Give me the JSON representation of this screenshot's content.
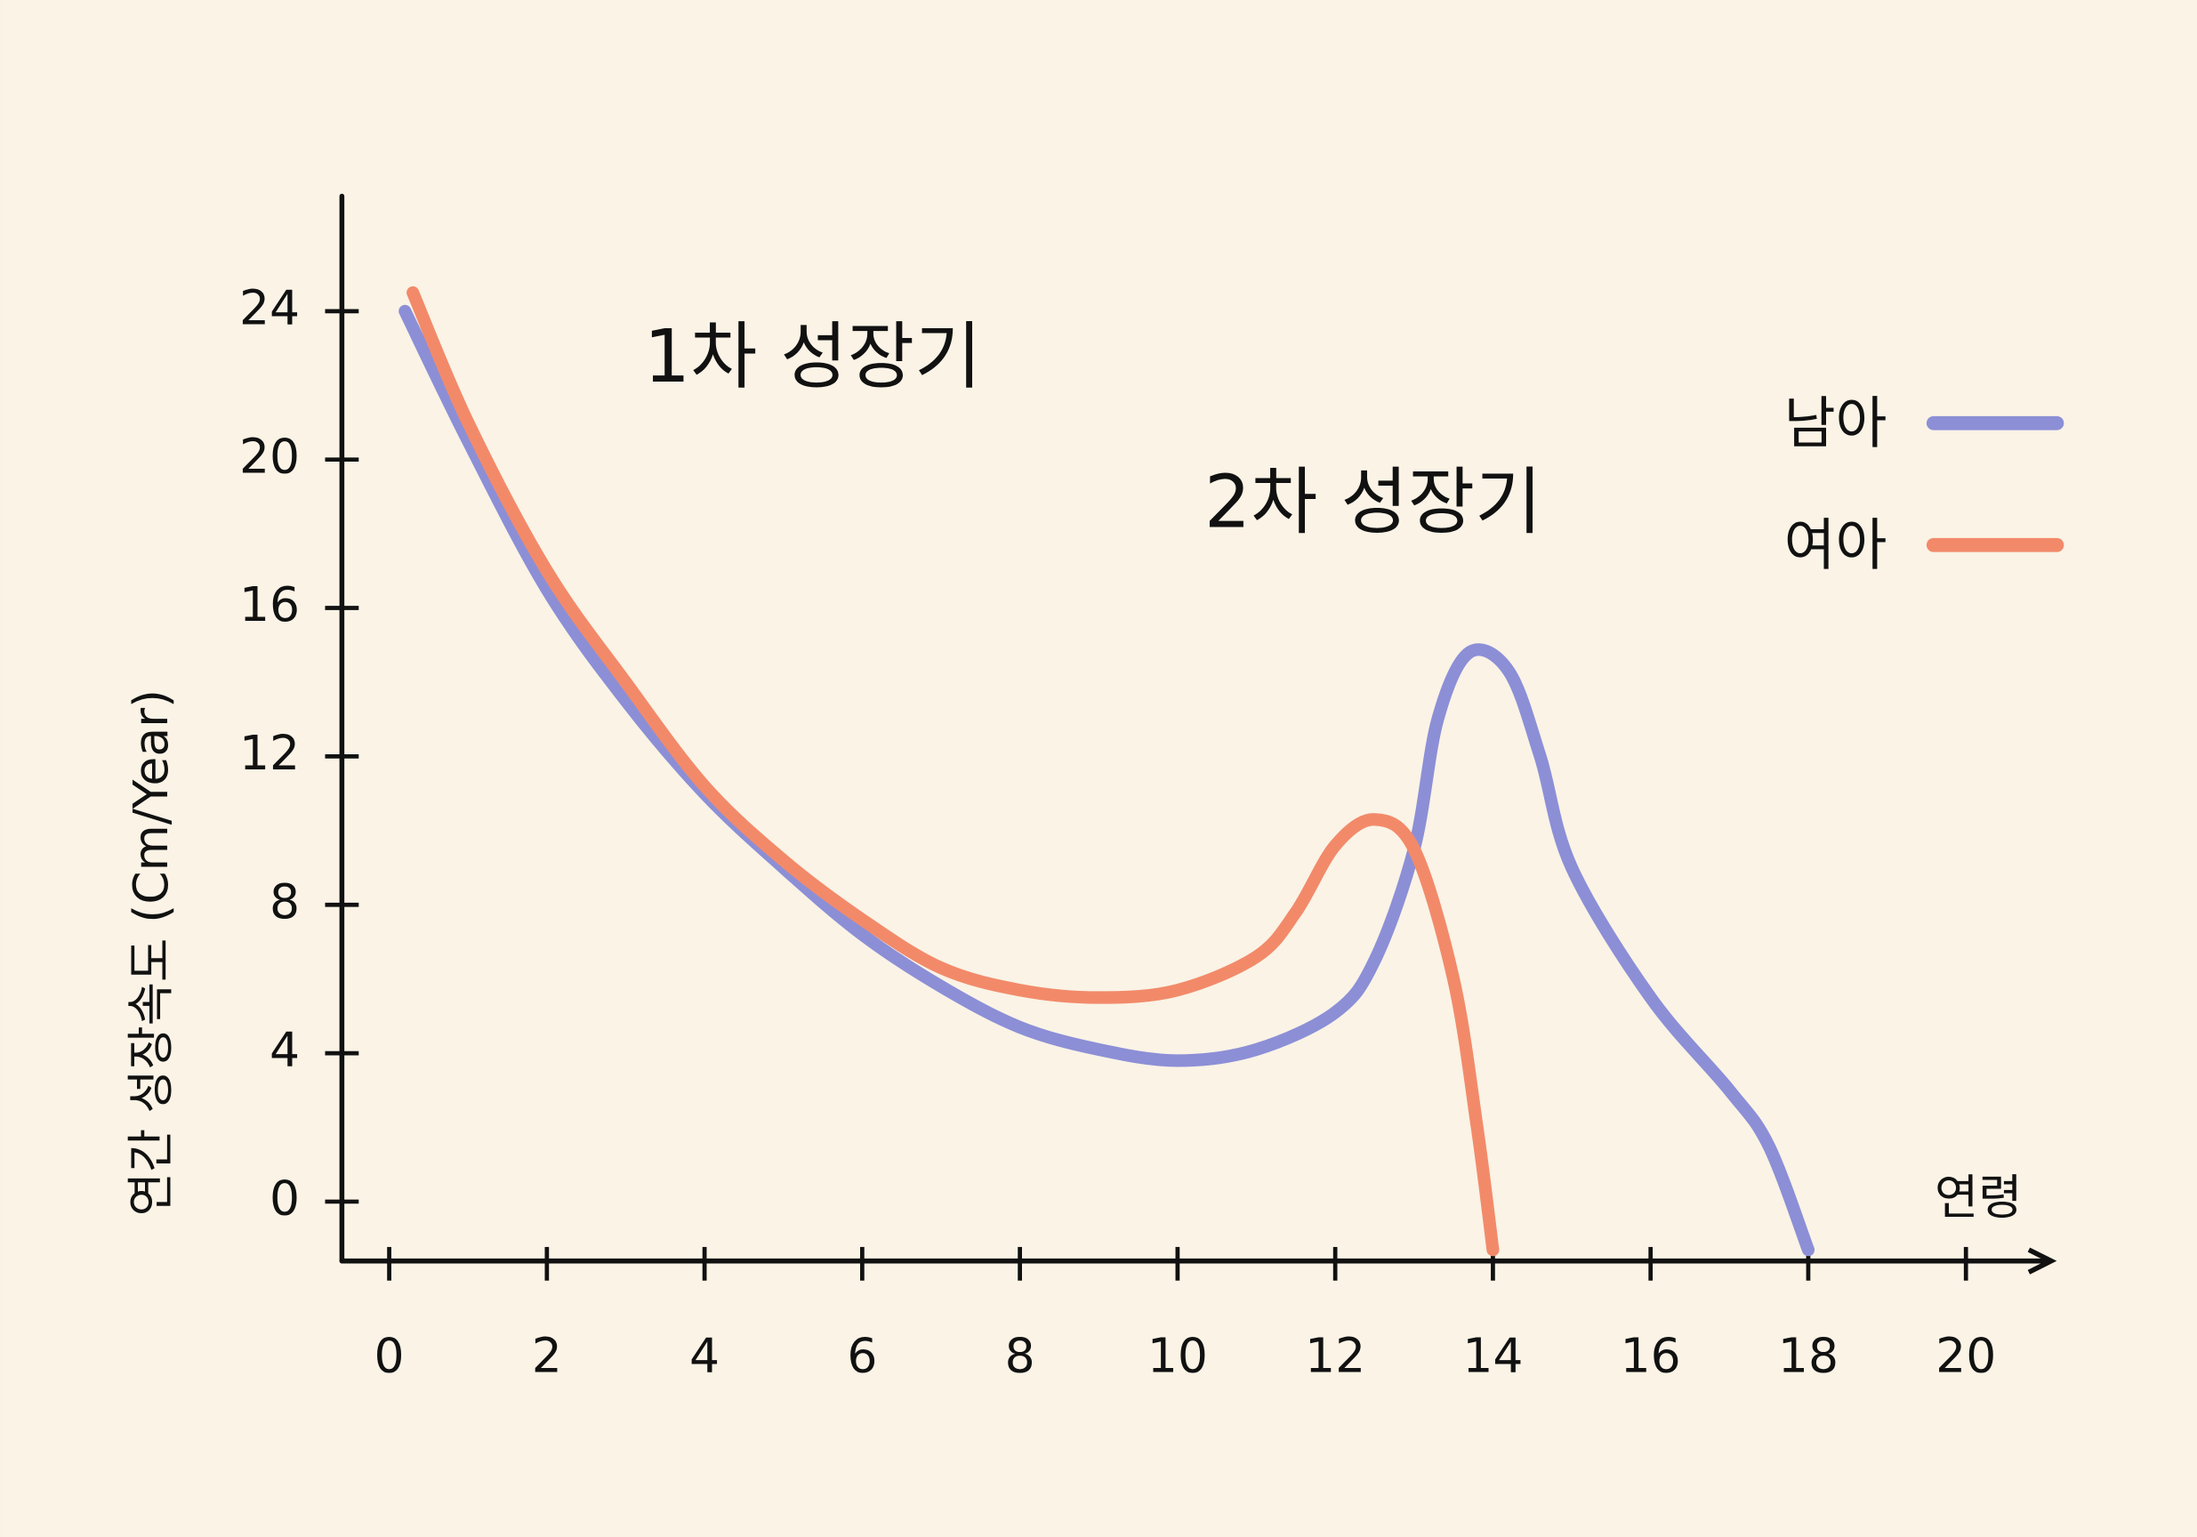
{
  "chart_data": {
    "type": "line",
    "annotations": [
      "1차 성장기",
      "2차 성장기"
    ],
    "x_label": "연령",
    "y_label": "연간 성장속도 (Cm/Year)",
    "xlim": [
      -0.6,
      21.1
    ],
    "ylim": [
      -1.6,
      27.1
    ],
    "xticks": [
      0,
      2,
      4,
      6,
      8,
      10,
      12,
      14,
      16,
      18,
      20
    ],
    "yticks": [
      0,
      4,
      8,
      12,
      16,
      20,
      24
    ],
    "legend": "top-right",
    "series": [
      {
        "name": "남아",
        "color": "#8c8fd6",
        "x": [
          0.2,
          1,
          2,
          3,
          4,
          5,
          6,
          7,
          8,
          9,
          10,
          11,
          12,
          12.5,
          13,
          13.3,
          13.7,
          14.2,
          14.6,
          15,
          16,
          17,
          17.5,
          18
        ],
        "values": [
          24,
          20.5,
          16.5,
          13.5,
          11,
          9,
          7.2,
          5.8,
          4.7,
          4.1,
          3.8,
          4.1,
          5.1,
          6.5,
          9.5,
          13,
          14.8,
          14.3,
          12,
          9,
          5.5,
          3,
          1.5,
          -1.3
        ]
      },
      {
        "name": "여아",
        "color": "#f28a6a",
        "x": [
          0.3,
          1,
          2,
          3,
          4,
          5,
          6,
          7,
          8,
          9,
          10,
          11,
          11.5,
          12,
          12.5,
          13,
          13.5,
          13.8,
          14
        ],
        "values": [
          24.5,
          21,
          17,
          14,
          11.2,
          9.2,
          7.6,
          6.3,
          5.7,
          5.5,
          5.7,
          6.6,
          7.8,
          9.6,
          10.3,
          9.5,
          6,
          2,
          -1.3
        ]
      }
    ]
  }
}
